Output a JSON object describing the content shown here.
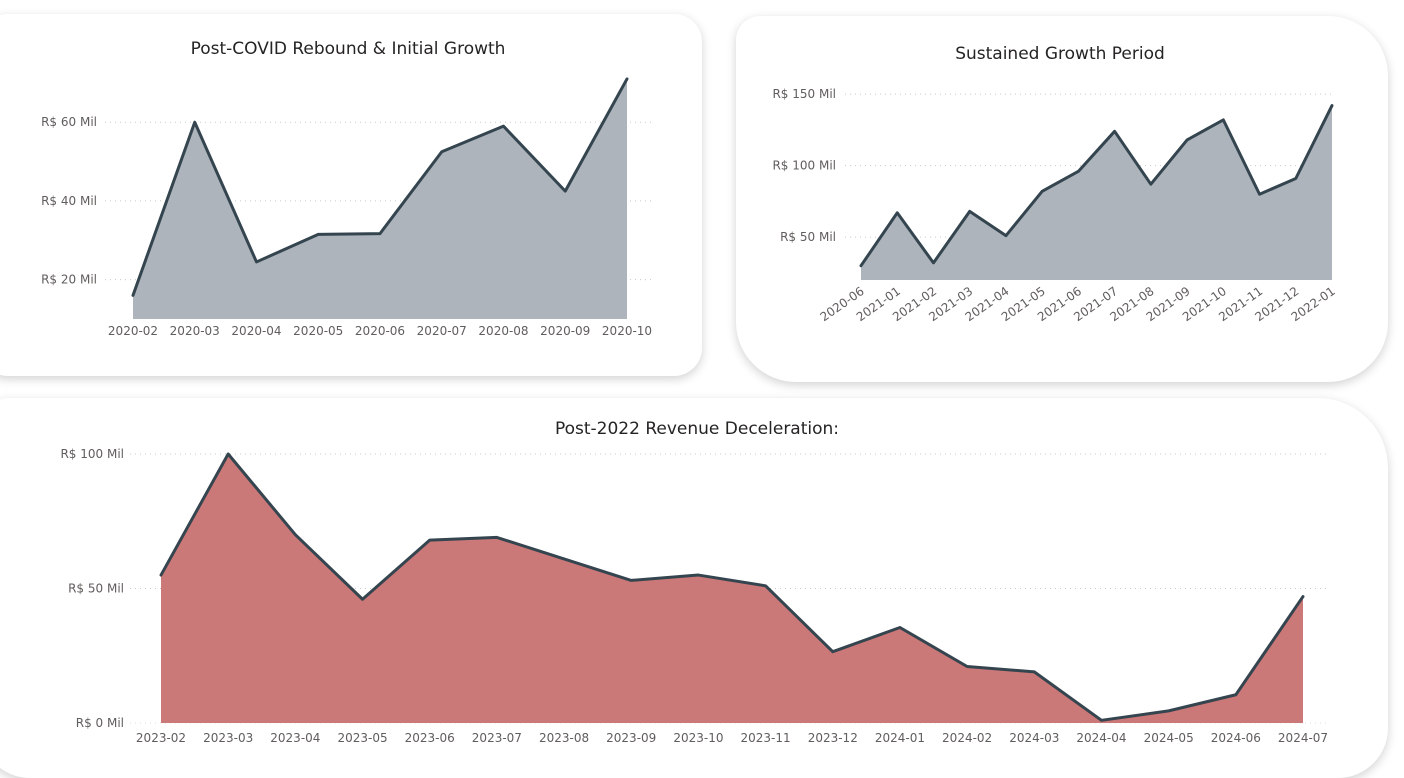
{
  "chart_data": [
    {
      "type": "area",
      "title": "Post-COVID Rebound & Initial Growth",
      "categories": [
        "2020-02",
        "2020-03",
        "2020-04",
        "2020-05",
        "2020-06",
        "2020-07",
        "2020-08",
        "2020-09",
        "2020-10"
      ],
      "values": [
        16,
        60,
        24.5,
        31.5,
        31.7,
        52.5,
        59,
        42.5,
        71
      ],
      "ytick_values": [
        20,
        40,
        60
      ],
      "ytick_labels": [
        "R$ 20 Mil",
        "R$ 40 Mil",
        "R$ 60 Mil"
      ],
      "ylim": [
        10,
        72
      ],
      "grid": true,
      "colors": {
        "fill": "#adb4bb",
        "line": "#35454f"
      }
    },
    {
      "type": "area",
      "title": "Sustained Growth Period",
      "categories": [
        "2020-06",
        "2021-01",
        "2021-02",
        "2021-03",
        "2021-04",
        "2021-05",
        "2021-06",
        "2021-07",
        "2021-08",
        "2021-09",
        "2021-10",
        "2021-11",
        "2021-12",
        "2022-01"
      ],
      "values": [
        30,
        67,
        32,
        68,
        51,
        82,
        96,
        124,
        87,
        118,
        132,
        80,
        91,
        142
      ],
      "ytick_values": [
        50,
        100,
        150
      ],
      "ytick_labels": [
        "R$ 50 Mil",
        "R$ 100 Mil",
        "R$ 150 Mil"
      ],
      "ylim": [
        20,
        155
      ],
      "grid": true,
      "colors": {
        "fill": "#adb4bb",
        "line": "#35454f"
      }
    },
    {
      "type": "area",
      "title": "Post-2022 Revenue Deceleration:",
      "categories": [
        "2023-02",
        "2023-03",
        "2023-04",
        "2023-05",
        "2023-06",
        "2023-07",
        "2023-08",
        "2023-09",
        "2023-10",
        "2023-11",
        "2023-12",
        "2024-01",
        "2024-02",
        "2024-03",
        "2024-04",
        "2024-05",
        "2024-06",
        "2024-07"
      ],
      "values": [
        55,
        100,
        70,
        46,
        68,
        69,
        61,
        53,
        55,
        51,
        26.5,
        35.5,
        21,
        19,
        1,
        4.5,
        10.5,
        47
      ],
      "ytick_values": [
        0,
        50,
        100
      ],
      "ytick_labels": [
        "R$ 0 Mil",
        "R$ 50 Mil",
        "R$ 100 Mil"
      ],
      "ylim": [
        0,
        100
      ],
      "grid": true,
      "colors": {
        "fill": "#cb7878",
        "line": "#35454f"
      }
    }
  ]
}
